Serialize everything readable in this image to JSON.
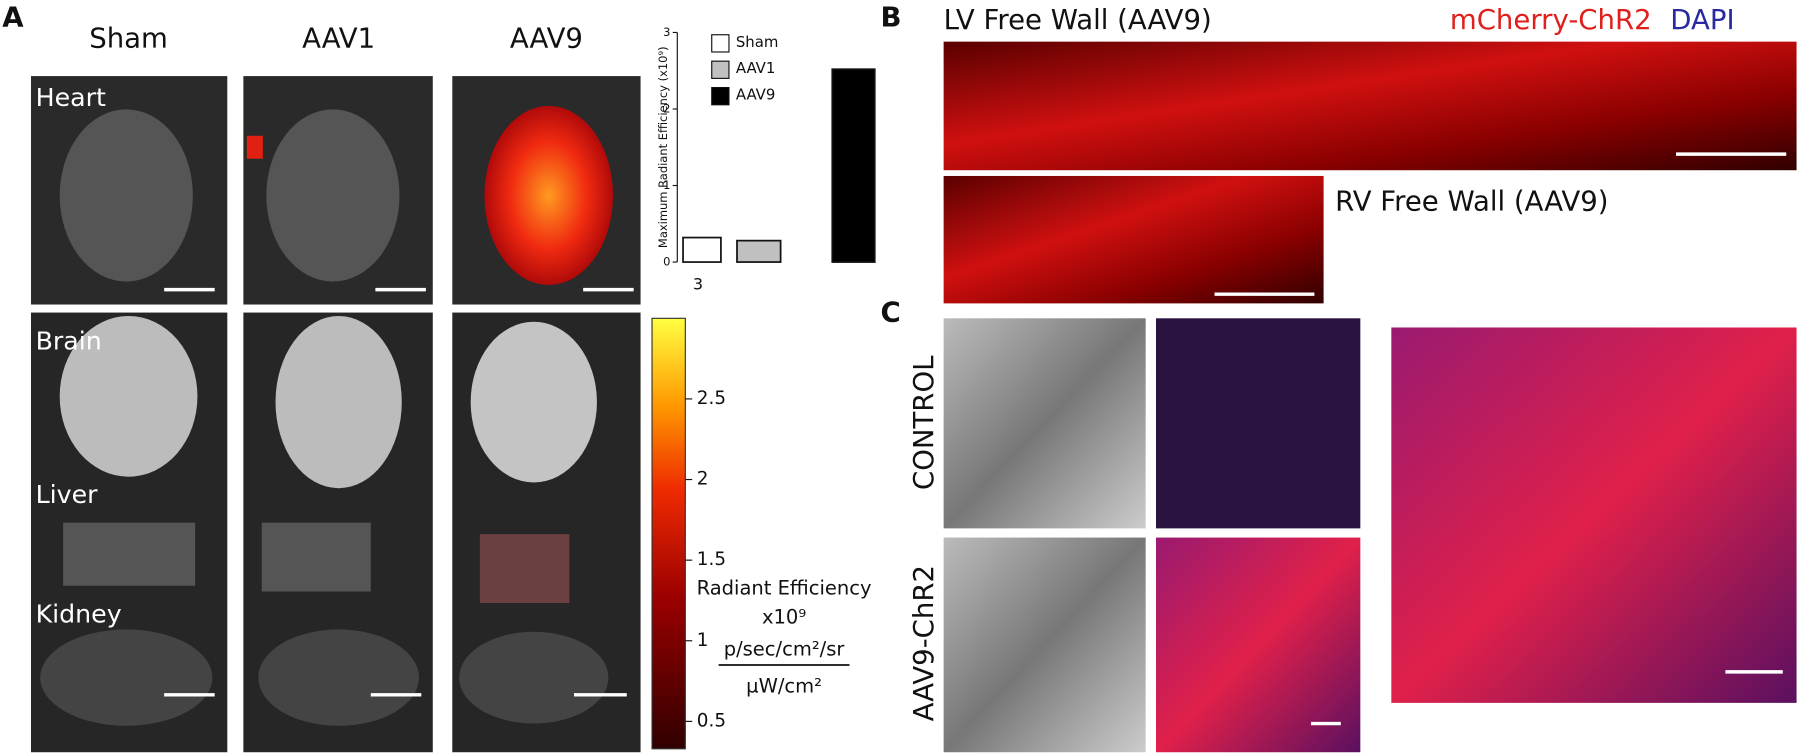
{
  "panel_labels": [
    "A",
    "B",
    "C"
  ],
  "panel_a": {
    "columns": [
      "Sham",
      "AAV1",
      "AAV9"
    ],
    "organs": [
      "Heart",
      "Brain",
      "Liver",
      "Kidney"
    ],
    "colorbar": {
      "label": "Radiant Efficiency",
      "multiplier": "x10⁹",
      "unit_numerator": "p/sec/cm²/sr",
      "unit_denominator": "µW/cm²",
      "clim": [
        0.33,
        3.0
      ],
      "ticks": [
        0.5,
        1,
        1.5,
        2,
        2.5
      ]
    }
  },
  "chart_data": {
    "type": "bar",
    "ylabel": "Maximum Radiant Efficiency (x10⁹)",
    "categories": [
      "Sham",
      "AAV1",
      "AAV9"
    ],
    "values": [
      0.32,
      0.28,
      2.52
    ],
    "colors": [
      "#ffffff",
      "#c0c0c0",
      "#000000"
    ],
    "ylim": [
      0,
      3
    ],
    "yticks": [
      0,
      1,
      2,
      3
    ],
    "annotation": "3"
  },
  "panel_b": {
    "lv_title": "LV Free Wall (AAV9)",
    "rv_title": "RV Free Wall (AAV9)",
    "stain_red": "mCherry-ChR2",
    "stain_blue": "DAPI"
  },
  "panel_c": {
    "rows": [
      "CONTROL",
      "AAV9-ChR2"
    ]
  }
}
